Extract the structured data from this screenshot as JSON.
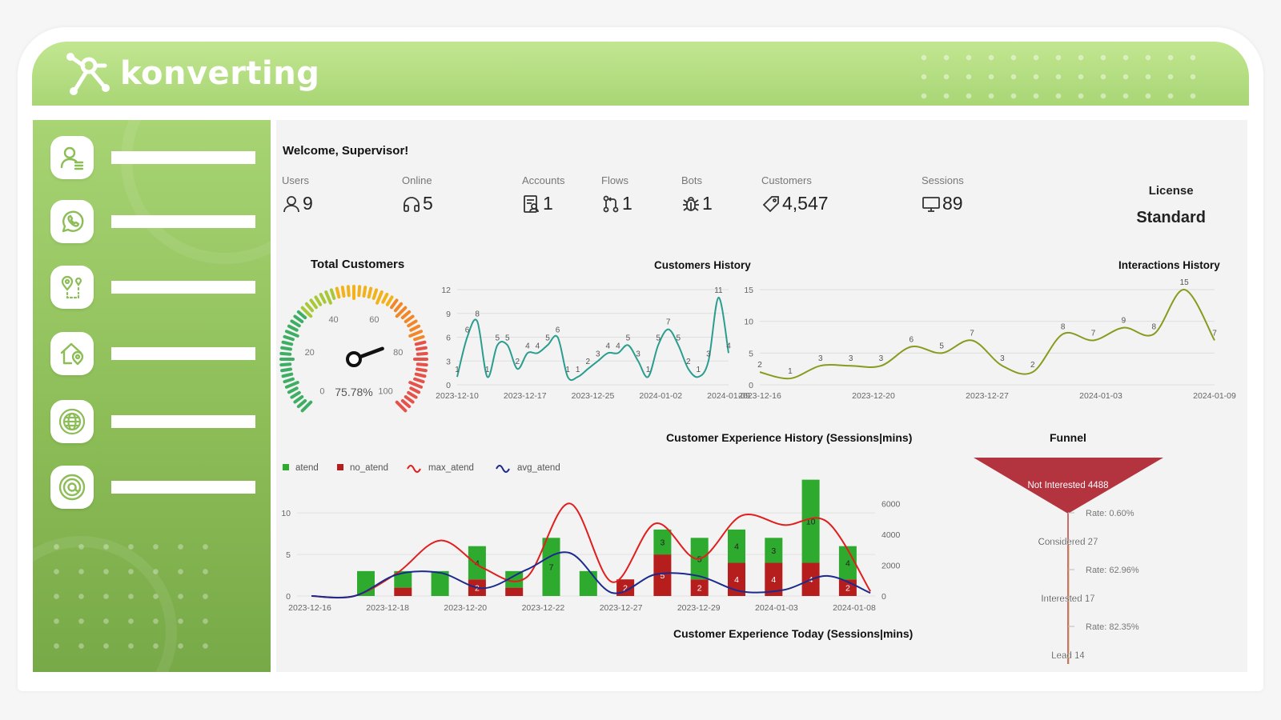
{
  "brand": {
    "name": "konverting",
    "accent": "#a9d675"
  },
  "sidebar": {
    "items": [
      {
        "icon": "user-list-icon"
      },
      {
        "icon": "whatsapp-icon"
      },
      {
        "icon": "map-pin-route-icon"
      },
      {
        "icon": "home-location-icon"
      },
      {
        "icon": "globe-network-icon"
      },
      {
        "icon": "at-sign-icon"
      }
    ]
  },
  "welcome": "Welcome, Supervisor!",
  "stats": [
    {
      "label": "Users",
      "value": "9",
      "icon": "user-icon"
    },
    {
      "label": "Online",
      "value": "5",
      "icon": "headphones-icon"
    },
    {
      "label": "Accounts",
      "value": "1",
      "icon": "accounts-icon"
    },
    {
      "label": "Flows",
      "value": "1",
      "icon": "flow-icon"
    },
    {
      "label": "Bots",
      "value": "1",
      "icon": "bug-icon"
    },
    {
      "label": "Customers",
      "value": "4,547",
      "icon": "tag-icon"
    },
    {
      "label": "Sessions",
      "value": "89",
      "icon": "monitor-icon"
    }
  ],
  "license": {
    "label": "License",
    "value": "Standard"
  },
  "titles": {
    "total_customers": "Total Customers",
    "customers_history": "Customers History",
    "interactions_history": "Interactions History",
    "cx_history": "Customer Experience History (Sessions|mins)",
    "funnel": "Funnel",
    "cx_today": "Customer Experience Today (Sessions|mins)"
  },
  "chart_data": [
    {
      "type": "gauge",
      "title": "Total Customers",
      "ticks": [
        0,
        20,
        40,
        60,
        80,
        100
      ],
      "tick_labels": [
        "0",
        "20",
        "40",
        "60",
        "80",
        "100"
      ],
      "value": 75.78,
      "value_label": "75.78%",
      "range": [
        0,
        100
      ]
    },
    {
      "type": "line",
      "title": "Customers History",
      "x_ticks": [
        "2023-12-10",
        "2023-12-17",
        "2023-12-25",
        "2024-01-02",
        "2024-01-09"
      ],
      "y_ticks": [
        "0",
        "3",
        "6",
        "9",
        "12"
      ],
      "ylim": [
        0,
        12
      ],
      "color": "#2a9d8f",
      "values": [
        1,
        6,
        8,
        1,
        5,
        5,
        2,
        4,
        4,
        5,
        6,
        1,
        1,
        2,
        3,
        4,
        4,
        5,
        3,
        1,
        5,
        7,
        5,
        2,
        1,
        3,
        11,
        4
      ]
    },
    {
      "type": "line",
      "title": "Interactions History",
      "x_ticks": [
        "2023-12-16",
        "2023-12-20",
        "2023-12-27",
        "2024-01-03",
        "2024-01-09"
      ],
      "y_ticks": [
        "0",
        "5",
        "10",
        "15"
      ],
      "ylim": [
        0,
        15
      ],
      "color": "#8a9a1e",
      "values": [
        2,
        1,
        3,
        3,
        3,
        6,
        5,
        7,
        3,
        2,
        8,
        7,
        9,
        8,
        15,
        7
      ]
    },
    {
      "type": "bar+line",
      "title": "Customer Experience History (Sessions|mins)",
      "legend": [
        "atend",
        "no_atend",
        "max_atend",
        "avg_atend"
      ],
      "colors": {
        "atend": "#2eaa2e",
        "no_atend": "#b61d1d",
        "max_atend": "#e01e1e",
        "avg_atend": "#1b2a8c"
      },
      "x_ticks": [
        "2023-12-16",
        "2023-12-18",
        "2023-12-20",
        "2023-12-22",
        "2023-12-27",
        "2023-12-29",
        "2024-01-03",
        "2024-01-08"
      ],
      "y_left_ticks": [
        "0",
        "5",
        "10"
      ],
      "y_right_ticks": [
        "0",
        "2000",
        "4000",
        "6000"
      ],
      "ylim_left": [
        0,
        13
      ],
      "ylim_right": [
        0,
        7000
      ],
      "bars": [
        {
          "atend": 3,
          "no_atend": 0
        },
        {
          "atend": 2,
          "no_atend": 1
        },
        {
          "atend": 3,
          "no_atend": 0
        },
        {
          "atend": 4,
          "no_atend": 2
        },
        {
          "atend": 2,
          "no_atend": 1
        },
        {
          "atend": 7,
          "no_atend": 0
        },
        {
          "atend": 3,
          "no_atend": 0
        },
        {
          "atend": 0,
          "no_atend": 2
        },
        {
          "atend": 3,
          "no_atend": 5
        },
        {
          "atend": 5,
          "no_atend": 2
        },
        {
          "atend": 4,
          "no_atend": 4
        },
        {
          "atend": 3,
          "no_atend": 4
        },
        {
          "atend": 10,
          "no_atend": 4
        },
        {
          "atend": 4,
          "no_atend": 2
        }
      ],
      "max_atend": [
        0,
        0,
        1500,
        3600,
        1800,
        1200,
        6000,
        900,
        4700,
        2400,
        5200,
        4600,
        4800,
        300
      ],
      "avg_atend": [
        0,
        0,
        1400,
        1500,
        500,
        1700,
        2800,
        200,
        1400,
        1300,
        300,
        400,
        1300,
        200
      ]
    },
    {
      "type": "funnel",
      "title": "Funnel",
      "stages": [
        {
          "label": "Not Interested 4488"
        },
        {
          "label": "Considered 27"
        },
        {
          "label": "Interested 17"
        },
        {
          "label": "Lead 14"
        }
      ],
      "rates": [
        "Rate: 0.60%",
        "Rate: 62.96%",
        "Rate: 82.35%"
      ],
      "color": "#b3333f"
    }
  ]
}
